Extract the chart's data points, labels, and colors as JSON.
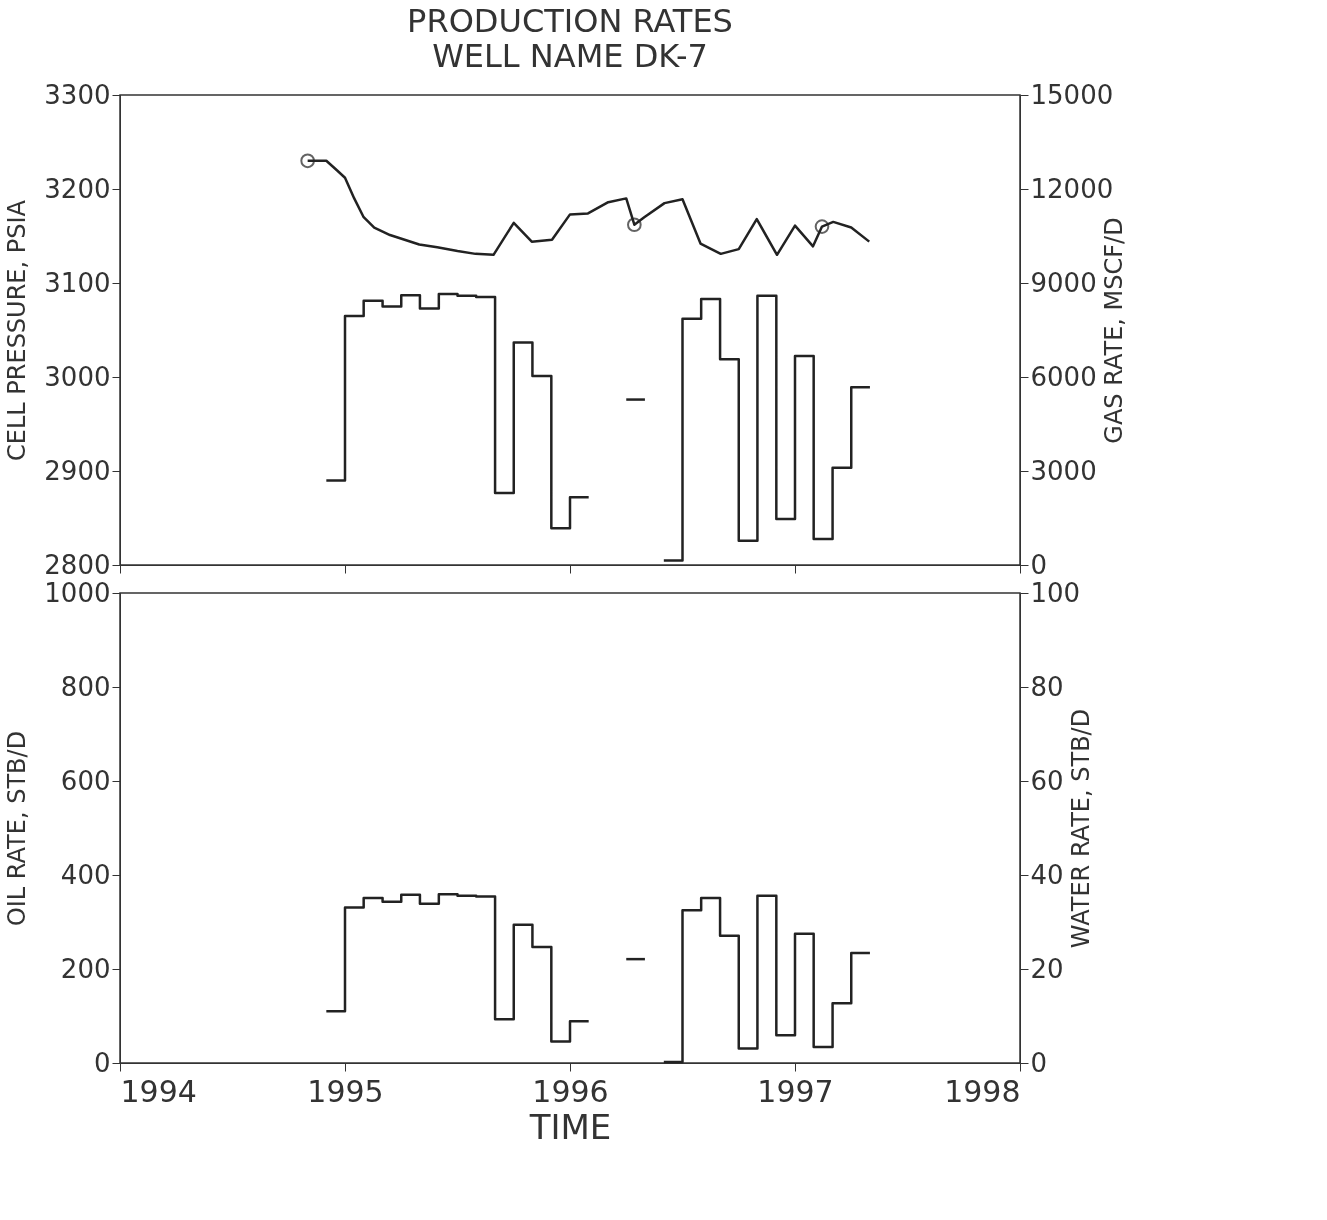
{
  "chart_data": [
    {
      "type": "line",
      "title": "PRODUCTION RATES",
      "subtitle": "WELL NAME DK-7",
      "ylabel": "CELL PRESSURE, PSIA",
      "y2label": "GAS RATE, MSCF/D",
      "xlim": [
        1994,
        1998
      ],
      "xticks": [
        1994,
        1995,
        1996,
        1997,
        1998
      ],
      "ylim": [
        2800,
        3300
      ],
      "yticks": [
        2800,
        2900,
        3000,
        3100,
        3200,
        3300
      ],
      "y2lim": [
        0,
        15000
      ],
      "y2ticks": [
        0,
        3000,
        6000,
        9000,
        12000,
        15000
      ],
      "tick_labels": "y",
      "grid": false,
      "series": [
        {
          "color": "#222222",
          "x": [
            1994.834,
            1994.917,
            1994.964,
            1995.0,
            1995.041,
            1995.083,
            1995.13,
            1995.2,
            1995.33,
            1995.41,
            1995.5,
            1995.58,
            1995.66,
            1995.75,
            1995.83,
            1995.92,
            1996.0,
            1996.08,
            1996.17,
            1996.25,
            1996.286,
            1996.33,
            1996.42,
            1996.5,
            1996.58,
            1996.67,
            1996.75,
            1996.83,
            1996.92,
            1997.0,
            1997.08,
            1997.12,
            1997.17,
            1997.25,
            1997.33
          ],
          "values": [
            3230,
            3230,
            3220,
            3212,
            3190,
            3170,
            3159,
            3151,
            3141,
            3138,
            3134,
            3131,
            3130,
            3164,
            3144,
            3146,
            3173,
            3174,
            3186,
            3190,
            3162,
            3170,
            3185,
            3189,
            3142,
            3131,
            3136,
            3168,
            3130,
            3161,
            3139,
            3160,
            3165,
            3159,
            3144
          ]
        },
        {
          "type": "scatter",
          "marker": "circle",
          "color": "#222222",
          "x": [
            1994.834,
            1996.286,
            1997.12
          ],
          "values": [
            3230,
            3162,
            3160
          ]
        },
        {
          "type": "step",
          "axis": "y2",
          "color": "#222222",
          "x": [
            1994.917,
            1995.0,
            1995.083,
            1995.167,
            1995.25,
            1995.333,
            1995.417,
            1995.5,
            1995.583,
            1995.667,
            1995.75,
            1995.833,
            1995.917,
            1996.0,
            1996.083
          ],
          "values": [
            2700,
            7950,
            8430,
            8250,
            8610,
            8190,
            8650,
            8590,
            8550,
            2300,
            7100,
            6030,
            1170,
            2160,
            2160
          ]
        },
        {
          "type": "step",
          "axis": "y2",
          "color": "#222222",
          "x": [
            1996.25,
            1996.333
          ],
          "values": [
            5280,
            5280
          ]
        },
        {
          "type": "step",
          "axis": "y2",
          "color": "#222222",
          "x": [
            1996.417,
            1996.5,
            1996.583,
            1996.667,
            1996.75,
            1996.833,
            1996.917,
            1997.0,
            1997.083,
            1997.167,
            1997.25,
            1997.333
          ],
          "values": [
            140,
            7860,
            8490,
            6570,
            770,
            8590,
            1470,
            6670,
            830,
            3100,
            5670,
            5670
          ]
        }
      ]
    },
    {
      "type": "step",
      "xlabel": "TIME",
      "ylabel": "OIL RATE, STB/D",
      "y2label": "WATER RATE, STB/D",
      "xlim": [
        1994,
        1998
      ],
      "xticks": [
        1994,
        1995,
        1996,
        1997,
        1998
      ],
      "ylim": [
        0,
        1000
      ],
      "yticks": [
        0,
        200,
        400,
        600,
        800,
        1000
      ],
      "y2lim": [
        0,
        100
      ],
      "y2ticks": [
        0,
        20,
        40,
        60,
        80,
        100
      ],
      "grid": false,
      "series": [
        {
          "color": "#222222",
          "x": [
            1994.917,
            1995.0,
            1995.083,
            1995.167,
            1995.25,
            1995.333,
            1995.417,
            1995.5,
            1995.583,
            1995.667,
            1995.75,
            1995.833,
            1995.917,
            1996.0,
            1996.083
          ],
          "values": [
            110,
            331,
            351,
            343,
            358,
            339,
            359,
            356,
            354,
            93,
            294,
            247,
            46,
            89,
            89
          ]
        },
        {
          "color": "#222222",
          "x": [
            1996.25,
            1996.333
          ],
          "values": [
            221,
            221
          ]
        },
        {
          "color": "#222222",
          "x": [
            1996.417,
            1996.5,
            1996.583,
            1996.667,
            1996.75,
            1996.833,
            1996.917,
            1997.0,
            1997.083,
            1997.167,
            1997.25,
            1997.333
          ],
          "values": [
            2,
            325,
            351,
            271,
            31,
            356,
            59,
            275,
            34,
            127,
            234,
            234
          ]
        }
      ]
    }
  ]
}
